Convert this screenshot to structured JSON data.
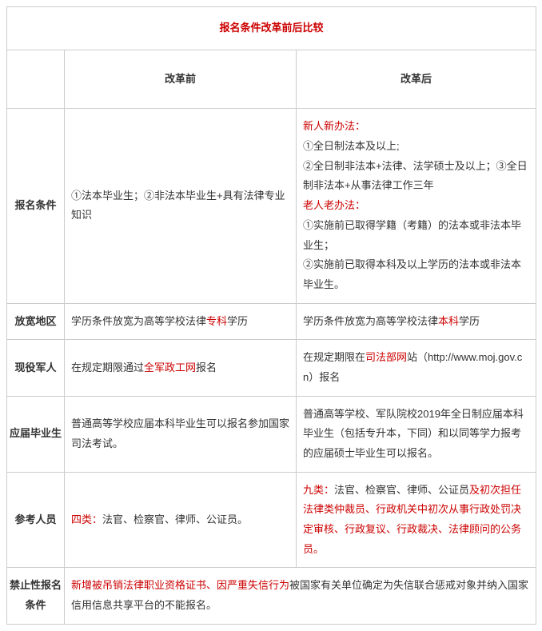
{
  "title": "报名条件改革前后比较",
  "headers": {
    "before": "改革前",
    "after": "改革后"
  },
  "rows": {
    "r1": {
      "label": "报名条件",
      "before": [
        {
          "t": "①法本毕业生；②非法本毕业生+具有法律专业知识",
          "c": "black"
        }
      ],
      "after": [
        {
          "t": "新人新办法：",
          "c": "red"
        },
        {
          "t": "①全日制法本及以上;",
          "c": "black"
        },
        {
          "t": "②全日制非法本+法律、法学硕士及以上；③全日制非法本+从事法律工作三年",
          "c": "black"
        },
        {
          "t": "老人老办法：",
          "c": "red"
        },
        {
          "t": "①实施前已取得学籍（考籍）的法本或非法本毕业生；",
          "c": "black"
        },
        {
          "t": "②实施前已取得本科及以上学历的法本或非法本毕业生。",
          "c": "black"
        }
      ]
    },
    "r2": {
      "label": "放宽地区",
      "before": [
        {
          "t": "学历条件放宽为高等学校法律",
          "c": "black"
        },
        {
          "t": "专科",
          "c": "red"
        },
        {
          "t": "学历",
          "c": "black"
        }
      ],
      "after": [
        {
          "t": "学历条件放宽为高等学校法律",
          "c": "black"
        },
        {
          "t": "本科",
          "c": "red"
        },
        {
          "t": "学历",
          "c": "black"
        }
      ]
    },
    "r3": {
      "label": "现役军人",
      "before": [
        {
          "t": "在规定期限通过",
          "c": "black"
        },
        {
          "t": "全军政工网",
          "c": "red"
        },
        {
          "t": "报名",
          "c": "black"
        }
      ],
      "after": [
        {
          "t": "在规定期限在",
          "c": "black"
        },
        {
          "t": "司法部网",
          "c": "red"
        },
        {
          "t": "站（http://www.moj.gov.cn）报名",
          "c": "black"
        }
      ]
    },
    "r4": {
      "label": "应届毕业生",
      "before": [
        {
          "t": "普通高等学校应届本科毕业生可以报名参加国家司法考试。",
          "c": "black"
        }
      ],
      "after": [
        {
          "t": "普通高等学校、军队院校2019年全日制应届本科毕业生（包括专升本，下同）和以同等学力报考的应届硕士毕业生可以报名。",
          "c": "black"
        }
      ]
    },
    "r5": {
      "label": "参考人员",
      "before": [
        {
          "t": "四类：",
          "c": "red"
        },
        {
          "t": "法官、检察官、律师、公证员。",
          "c": "black"
        }
      ],
      "after": [
        {
          "t": "九类：",
          "c": "red"
        },
        {
          "t": "法官、检察官、律师、公证员",
          "c": "black"
        },
        {
          "t": "及初次担任法律类仲裁员、行政机关中初次从事行政处罚决定审核、行政复议、行政裁决、法律顾问的公务员。",
          "c": "red"
        }
      ]
    },
    "r6": {
      "label": "禁止性报名条件",
      "merged": [
        {
          "t": "新增被吊销法律职业资格证书、因严重失信行为",
          "c": "red"
        },
        {
          "t": "被国家有关单位确定为失信联合惩戒对象并纳入国家信用信息共享平台的不能报名。",
          "c": "black"
        }
      ]
    }
  }
}
